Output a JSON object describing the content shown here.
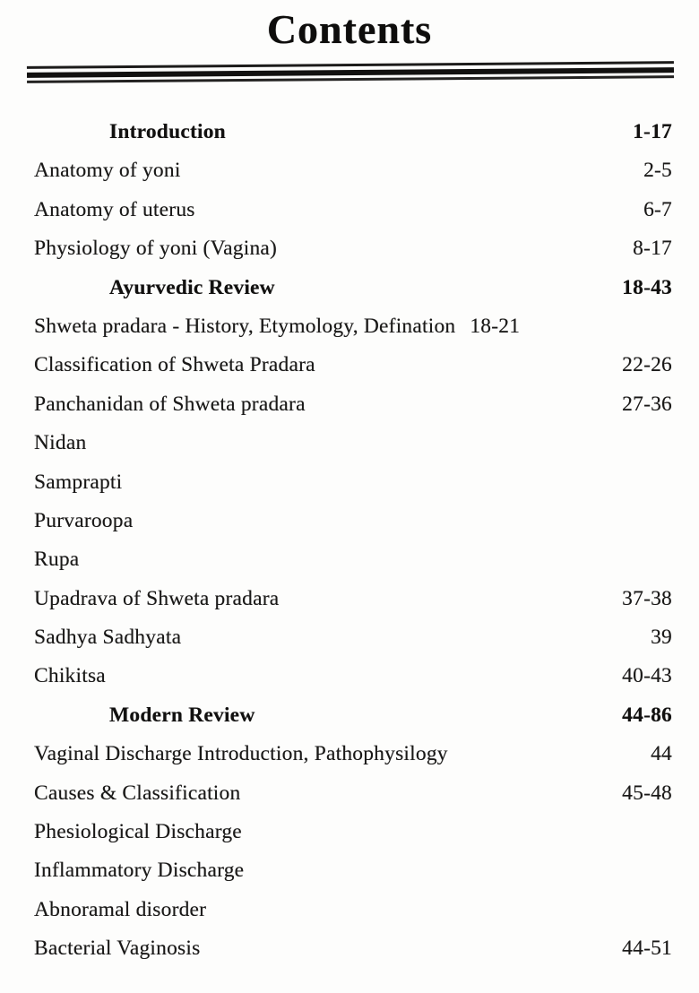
{
  "page": {
    "title": "Contents",
    "ink_color": "#121110",
    "paper_color": "#fdfdfc",
    "entries": [
      {
        "label": "Introduction",
        "pages": "1-17",
        "type": "heading"
      },
      {
        "label": "Anatomy of yoni",
        "pages": "2-5",
        "type": "item"
      },
      {
        "label": "Anatomy of uterus",
        "pages": "6-7",
        "type": "item"
      },
      {
        "label": "Physiology of yoni (Vagina)",
        "pages": "8-17",
        "type": "item"
      },
      {
        "label": "Ayurvedic Review",
        "pages": "18-43",
        "type": "heading"
      },
      {
        "label": "Shweta pradara - History, Etymology, Defination",
        "pages": "18-21",
        "type": "item-inline"
      },
      {
        "label": "Classification of Shweta Pradara",
        "pages": "22-26",
        "type": "item"
      },
      {
        "label": "Panchanidan of Shweta pradara",
        "pages": "27-36",
        "type": "item"
      },
      {
        "label": "Nidan",
        "pages": "",
        "type": "item"
      },
      {
        "label": "Samprapti",
        "pages": "",
        "type": "item"
      },
      {
        "label": "Purvaroopa",
        "pages": "",
        "type": "item"
      },
      {
        "label": "Rupa",
        "pages": "",
        "type": "item"
      },
      {
        "label": "Upadrava of Shweta pradara",
        "pages": "37-38",
        "type": "item"
      },
      {
        "label": "Sadhya Sadhyata",
        "pages": "39",
        "type": "item"
      },
      {
        "label": "Chikitsa",
        "pages": "40-43",
        "type": "item"
      },
      {
        "label": "Modern Review",
        "pages": "44-86",
        "type": "heading"
      },
      {
        "label": "Vaginal Discharge Introduction, Pathophysilogy",
        "pages": "44",
        "type": "item"
      },
      {
        "label": "Causes & Classification",
        "pages": "45-48",
        "type": "item"
      },
      {
        "label": "Phesiological Discharge",
        "pages": "",
        "type": "item"
      },
      {
        "label": "Inflammatory Discharge",
        "pages": "",
        "type": "item"
      },
      {
        "label": "Abnoramal disorder",
        "pages": "",
        "type": "item"
      },
      {
        "label": "Bacterial Vaginosis",
        "pages": "44-51",
        "type": "item"
      }
    ]
  }
}
